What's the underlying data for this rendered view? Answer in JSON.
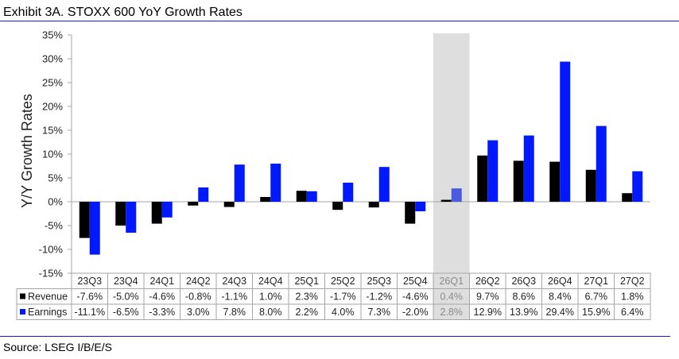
{
  "title": "Exhibit 3A.  STOXX 600 YoY Growth Rates",
  "source": "Source: LSEG I/B/E/S",
  "colors": {
    "revenue": "#000000",
    "earnings": "#0019ff",
    "earnings_highlighted": "#4a5be0",
    "highlight_band": "#dedede",
    "rule": "#1a1adb",
    "gridline": "#a6a6a6"
  },
  "chart_data": {
    "type": "bar",
    "title": "Exhibit 3A.  STOXX 600 YoY Growth Rates",
    "xlabel": "",
    "ylabel": "Y/Y Growth Rates",
    "ylim": [
      -15,
      35
    ],
    "yticks": [
      35,
      30,
      25,
      20,
      15,
      10,
      5,
      0,
      -5,
      -10,
      -15
    ],
    "ytick_labels": [
      "35%",
      "30%",
      "25%",
      "20%",
      "15%",
      "10%",
      "5%",
      "0%",
      "-5%",
      "-10%",
      "-15%"
    ],
    "grid": false,
    "legend": "data-table-below",
    "highlighted_category": "26Q1",
    "categories": [
      "23Q3",
      "23Q4",
      "24Q1",
      "24Q2",
      "24Q3",
      "24Q4",
      "25Q1",
      "25Q2",
      "25Q3",
      "25Q4",
      "26Q1",
      "26Q2",
      "26Q3",
      "26Q4",
      "27Q1",
      "27Q2"
    ],
    "series": [
      {
        "name": "Revenue",
        "color": "#000000",
        "values": [
          -7.6,
          -5.0,
          -4.6,
          -0.8,
          -1.1,
          1.0,
          2.3,
          -1.7,
          -1.2,
          -4.6,
          0.4,
          9.7,
          8.6,
          8.4,
          6.7,
          1.8
        ],
        "labels": [
          "-7.6%",
          "-5.0%",
          "-4.6%",
          "-0.8%",
          "-1.1%",
          "1.0%",
          "2.3%",
          "-1.7%",
          "-1.2%",
          "-4.6%",
          "0.4%",
          "9.7%",
          "8.6%",
          "8.4%",
          "6.7%",
          "1.8%"
        ]
      },
      {
        "name": "Earnings",
        "color": "#0019ff",
        "values": [
          -11.1,
          -6.5,
          -3.3,
          3.0,
          7.8,
          8.0,
          2.2,
          4.0,
          7.3,
          -2.0,
          2.8,
          12.9,
          13.9,
          29.4,
          15.9,
          6.4
        ],
        "labels": [
          "-11.1%",
          "-6.5%",
          "-3.3%",
          "3.0%",
          "7.8%",
          "8.0%",
          "2.2%",
          "4.0%",
          "7.3%",
          "-2.0%",
          "2.8%",
          "12.9%",
          "13.9%",
          "29.4%",
          "15.9%",
          "6.4%"
        ]
      }
    ]
  }
}
